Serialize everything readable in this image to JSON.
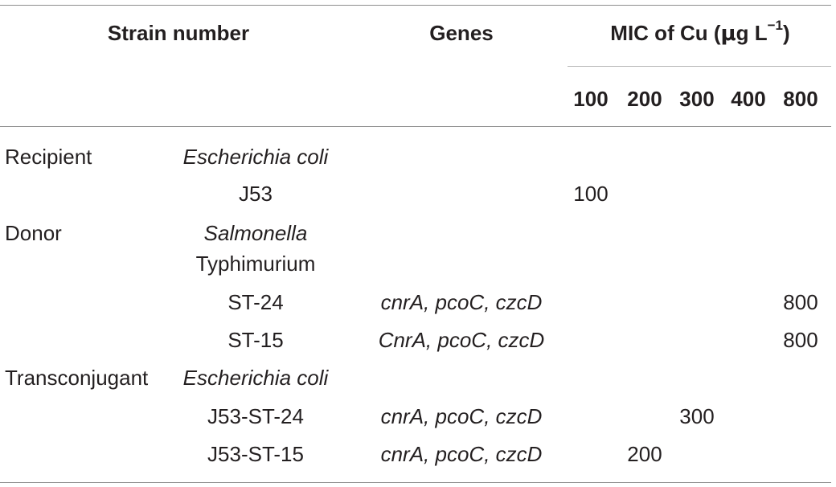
{
  "header": {
    "strain_number": "Strain number",
    "genes": "Genes",
    "mic_prefix": "MIC of Cu (",
    "mic_mu": "μ",
    "mic_unit": "g L",
    "mic_exp": "−1",
    "mic_suffix": ")",
    "concentrations": [
      "100",
      "200",
      "300",
      "400",
      "800"
    ]
  },
  "rows": [
    {
      "group": "Recipient",
      "strain": "Escherichia coli",
      "strain_italic": true,
      "genes": "",
      "mic": ""
    },
    {
      "group": "",
      "strain": "J53",
      "strain_italic": false,
      "genes": "",
      "mic": "100"
    },
    {
      "group": "Donor",
      "strain": "Salmonella",
      "strain_italic": true,
      "genes": "",
      "mic": ""
    },
    {
      "group": "",
      "strain": "Typhimurium",
      "strain_italic": false,
      "genes": "",
      "mic": ""
    },
    {
      "group": "",
      "strain": "ST-24",
      "strain_italic": false,
      "genes": "cnrA, pcoC, czcD",
      "mic": "800"
    },
    {
      "group": "",
      "strain": "ST-15",
      "strain_italic": false,
      "genes": "CnrA, pcoC, czcD",
      "mic": "800"
    },
    {
      "group": "Transconjugant",
      "strain": "Escherichia coli",
      "strain_italic": true,
      "genes": "",
      "mic": ""
    },
    {
      "group": "",
      "strain": "J53-ST-24",
      "strain_italic": false,
      "genes": "cnrA, pcoC, czcD",
      "mic": "300"
    },
    {
      "group": "",
      "strain": "J53-ST-15",
      "strain_italic": false,
      "genes": "cnrA, pcoC, czcD",
      "mic": "200"
    }
  ]
}
